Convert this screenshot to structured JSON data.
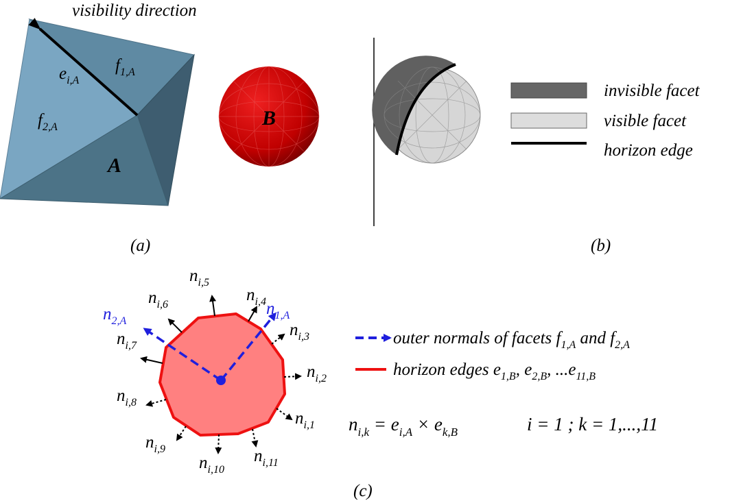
{
  "panel_a": {
    "caption": "(a)",
    "arrow_label": "visibility direction",
    "edge_label": {
      "base": "e",
      "sub": "i,A"
    },
    "facet1_label": {
      "base": "f",
      "sub": "1,A"
    },
    "facet2_label": {
      "base": "f",
      "sub": "2,A"
    },
    "body_a_label": "A",
    "body_b_label": "B",
    "colors": {
      "polyhedron_face": "#7aa6c2",
      "polyhedron_dark": "#3e5d70",
      "sphere": "#cc0000"
    }
  },
  "panel_b": {
    "caption": "(b)",
    "legend": [
      {
        "label": "invisible facet",
        "swatch": "#666666"
      },
      {
        "label": "visible facet",
        "swatch": "#dddddd"
      },
      {
        "label": "horizon edge",
        "swatch": "#000000"
      }
    ]
  },
  "panel_c": {
    "caption": "(c)",
    "normals": [
      {
        "base": "n",
        "sub": "i,1"
      },
      {
        "base": "n",
        "sub": "i,2"
      },
      {
        "base": "n",
        "sub": "i,3"
      },
      {
        "base": "n",
        "sub": "i,4"
      },
      {
        "base": "n",
        "sub": "i,5"
      },
      {
        "base": "n",
        "sub": "i,6"
      },
      {
        "base": "n",
        "sub": "i,7"
      },
      {
        "base": "n",
        "sub": "i,8"
      },
      {
        "base": "n",
        "sub": "i,9"
      },
      {
        "base": "n",
        "sub": "i,10"
      },
      {
        "base": "n",
        "sub": "i,11"
      }
    ],
    "facet_normals": [
      {
        "base": "n",
        "sub": "1,A"
      },
      {
        "base": "n",
        "sub": "2,A"
      }
    ],
    "legend_normals": "outer normals of facets f",
    "legend_normals_sub1": "1,A",
    "legend_normals_and": " and f",
    "legend_normals_sub2": "2,A",
    "legend_edges": "horizon edges e",
    "legend_edges_sub1": "1,B",
    "legend_edges_mid1": ", e",
    "legend_edges_sub2": "2,B",
    "legend_edges_mid2": ", ...e",
    "legend_edges_sub3": "11,B",
    "formula": {
      "lhs": "n",
      "lhs_sub": "i,k",
      "eq": " = e",
      "e1_sub": "i,A",
      "cross": " × e",
      "e2_sub": "k,B",
      "range": "i = 1 ; k = 1,...,11"
    },
    "colors": {
      "polygon_fill": "#ff8080",
      "polygon_edge": "#ee1111",
      "normal_blue": "#1f1fdd"
    }
  }
}
